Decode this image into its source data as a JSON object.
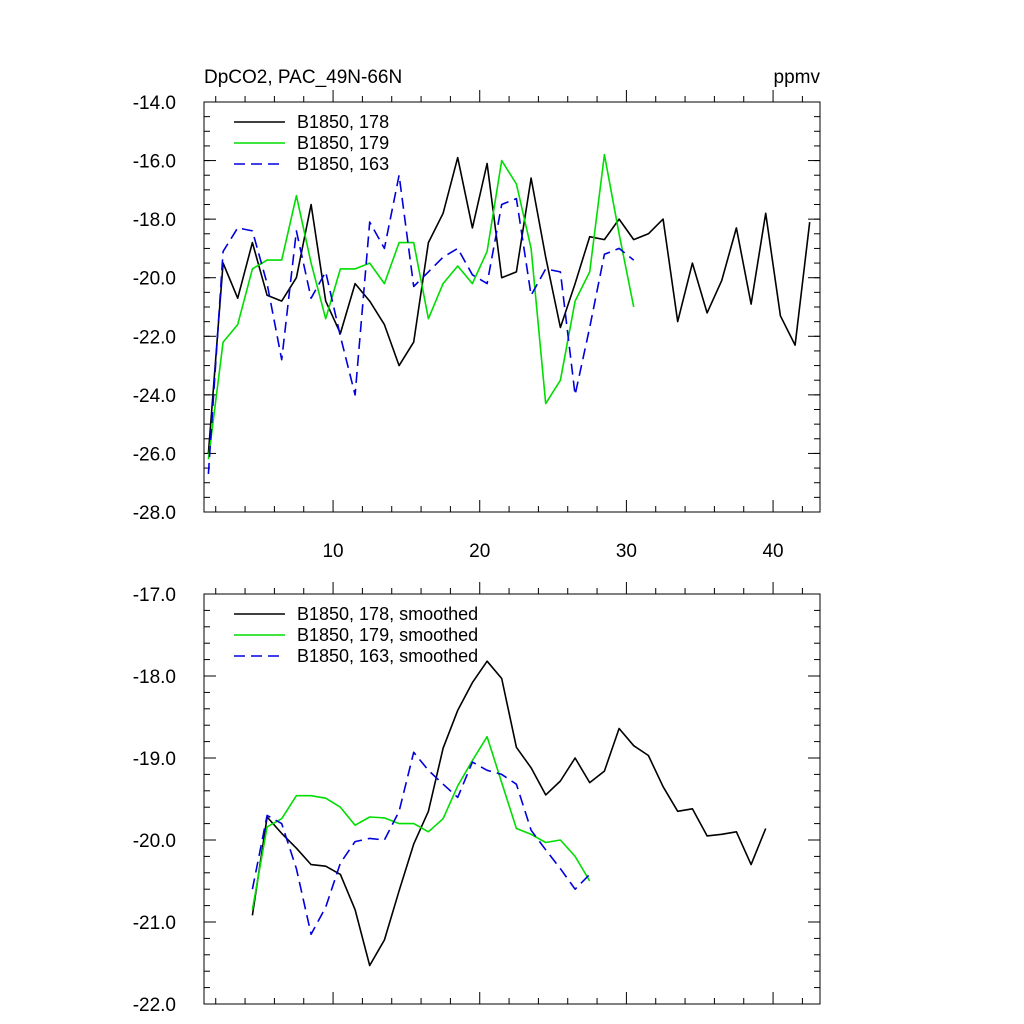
{
  "chart_data": [
    {
      "type": "line",
      "title": "DpCO2, PAC_49N-66N",
      "units": "ppmv",
      "xlim": [
        1.2,
        43.2
      ],
      "ylim": [
        -28.0,
        -14.0
      ],
      "xticks": [
        10,
        20,
        30,
        40
      ],
      "xtick_labels": [
        "10",
        "20",
        "30",
        "40"
      ],
      "yticks": [
        -28,
        -26,
        -24,
        -22,
        -20,
        -18,
        -16,
        -14
      ],
      "ytick_labels": [
        "-28.0",
        "-26.0",
        "-24.0",
        "-22.0",
        "-20.0",
        "-18.0",
        "-16.0",
        "-14.0"
      ],
      "legend_position": "top-left",
      "series": [
        {
          "name": "B1850, 178",
          "color": "#000000",
          "dash": "solid",
          "x": [
            1.5,
            2.5,
            3.5,
            4.5,
            5.5,
            6.5,
            7.5,
            8.5,
            9.5,
            10.5,
            11.5,
            12.5,
            13.5,
            14.5,
            15.5,
            16.5,
            17.5,
            18.5,
            19.5,
            20.5,
            21.5,
            22.5,
            23.5,
            24.5,
            25.5,
            26.5,
            27.5,
            28.5,
            29.5,
            30.5,
            31.5,
            32.5,
            33.5,
            34.5,
            35.5,
            36.5,
            37.5,
            38.5,
            39.5,
            40.5,
            41.5,
            42.5
          ],
          "y": [
            -26.0,
            -19.5,
            -20.7,
            -18.8,
            -20.6,
            -20.8,
            -20.0,
            -17.5,
            -20.8,
            -21.9,
            -20.2,
            -20.8,
            -21.6,
            -23.0,
            -22.2,
            -18.8,
            -17.8,
            -15.9,
            -18.3,
            -16.1,
            -20.0,
            -19.8,
            -16.6,
            -19.3,
            -21.7,
            -20.2,
            -18.6,
            -18.7,
            -18.0,
            -18.7,
            -18.5,
            -18.0,
            -21.5,
            -19.5,
            -21.2,
            -20.1,
            -18.3,
            -20.9,
            -17.8,
            -21.3,
            -22.3,
            -18.1
          ]
        },
        {
          "name": "B1850, 179",
          "color": "#00dd00",
          "dash": "solid",
          "x": [
            1.5,
            2.5,
            3.5,
            4.5,
            5.5,
            6.5,
            7.5,
            8.5,
            9.5,
            10.5,
            11.5,
            12.5,
            13.5,
            14.5,
            15.5,
            16.5,
            17.5,
            18.5,
            19.5,
            20.5,
            21.5,
            22.5,
            23.5,
            24.5,
            25.5,
            26.5,
            27.5,
            28.5,
            29.5,
            30.5
          ],
          "y": [
            -26.2,
            -22.2,
            -21.6,
            -19.7,
            -19.4,
            -19.4,
            -17.2,
            -19.5,
            -21.4,
            -19.7,
            -19.7,
            -19.5,
            -20.2,
            -18.8,
            -18.8,
            -21.4,
            -20.2,
            -19.6,
            -20.2,
            -19.1,
            -16.0,
            -16.8,
            -19.0,
            -24.3,
            -23.5,
            -20.8,
            -19.8,
            -15.8,
            -18.5,
            -21.0
          ]
        },
        {
          "name": "B1850, 163",
          "color": "#0000dd",
          "dash": "dashed",
          "x": [
            1.5,
            2.5,
            3.5,
            4.5,
            5.5,
            6.5,
            7.5,
            8.5,
            9.5,
            10.5,
            11.5,
            12.5,
            13.5,
            14.5,
            15.5,
            16.5,
            17.5,
            18.5,
            19.5,
            20.5,
            21.5,
            22.5,
            23.5,
            24.5,
            25.5,
            26.5,
            27.5,
            28.5,
            29.5,
            30.5
          ],
          "y": [
            -26.7,
            -19.1,
            -18.3,
            -18.4,
            -20.2,
            -22.8,
            -18.4,
            -20.7,
            -19.8,
            -22.0,
            -24.0,
            -18.1,
            -19.0,
            -16.5,
            -20.3,
            -19.8,
            -19.3,
            -19.0,
            -19.9,
            -20.2,
            -17.5,
            -17.3,
            -20.6,
            -19.7,
            -19.8,
            -24.0,
            -21.7,
            -19.2,
            -19.0,
            -19.4
          ]
        }
      ]
    },
    {
      "type": "line",
      "xlim": [
        1.2,
        43.2
      ],
      "ylim": [
        -22.0,
        -17.0
      ],
      "xticks": [
        10,
        20,
        30,
        40
      ],
      "xtick_labels": [],
      "yticks": [
        -22,
        -21,
        -20,
        -19,
        -18,
        -17
      ],
      "ytick_labels": [
        "-22.0",
        "-21.0",
        "-20.0",
        "-19.0",
        "-18.0",
        "-17.0"
      ],
      "legend_position": "top-left",
      "series": [
        {
          "name": "B1850, 178, smoothed",
          "color": "#000000",
          "dash": "solid",
          "x": [
            4.5,
            5.5,
            6.5,
            7.5,
            8.5,
            9.5,
            10.5,
            11.5,
            12.5,
            13.5,
            14.5,
            15.5,
            16.5,
            17.5,
            18.5,
            19.5,
            20.5,
            21.5,
            22.5,
            23.5,
            24.5,
            25.5,
            26.5,
            27.5,
            28.5,
            29.5,
            30.5,
            31.5,
            32.5,
            33.5,
            34.5,
            35.5,
            36.5,
            37.5,
            38.5,
            39.5
          ],
          "y": [
            -20.92,
            -19.72,
            -19.92,
            -20.1,
            -20.3,
            -20.32,
            -20.42,
            -20.85,
            -21.53,
            -21.22,
            -20.62,
            -20.05,
            -19.65,
            -18.88,
            -18.42,
            -18.08,
            -17.82,
            -18.03,
            -18.87,
            -19.12,
            -19.45,
            -19.28,
            -19.0,
            -19.3,
            -19.16,
            -18.64,
            -18.85,
            -18.97,
            -19.35,
            -19.65,
            -19.62,
            -19.95,
            -19.93,
            -19.9,
            -20.3,
            -19.86
          ]
        },
        {
          "name": "B1850, 179, smoothed",
          "color": "#00dd00",
          "dash": "solid",
          "x": [
            4.5,
            5.5,
            6.5,
            7.5,
            8.5,
            9.5,
            10.5,
            11.5,
            12.5,
            13.5,
            14.5,
            15.5,
            16.5,
            17.5,
            18.5,
            19.5,
            20.5,
            21.5,
            22.5,
            23.5,
            24.5,
            25.5,
            26.5,
            27.5
          ],
          "y": [
            -20.85,
            -19.84,
            -19.74,
            -19.46,
            -19.46,
            -19.49,
            -19.6,
            -19.82,
            -19.72,
            -19.73,
            -19.8,
            -19.8,
            -19.9,
            -19.74,
            -19.34,
            -19.03,
            -18.74,
            -19.3,
            -19.86,
            -19.93,
            -20.03,
            -20.0,
            -20.2,
            -20.5
          ]
        },
        {
          "name": "B1850, 163, smoothed",
          "color": "#0000dd",
          "dash": "dashed",
          "x": [
            4.5,
            5.5,
            6.5,
            7.5,
            8.5,
            9.5,
            10.5,
            11.5,
            12.5,
            13.5,
            14.5,
            15.5,
            16.5,
            17.5,
            18.5,
            19.5,
            20.5,
            21.5,
            22.5,
            23.5,
            24.5,
            25.5,
            26.5,
            27.5
          ],
          "y": [
            -20.6,
            -19.7,
            -19.8,
            -20.35,
            -21.15,
            -20.82,
            -20.28,
            -20.02,
            -19.98,
            -20.0,
            -19.65,
            -18.93,
            -19.15,
            -19.32,
            -19.48,
            -19.05,
            -19.15,
            -19.2,
            -19.32,
            -19.88,
            -20.12,
            -20.35,
            -20.6,
            -20.42
          ]
        }
      ]
    }
  ]
}
